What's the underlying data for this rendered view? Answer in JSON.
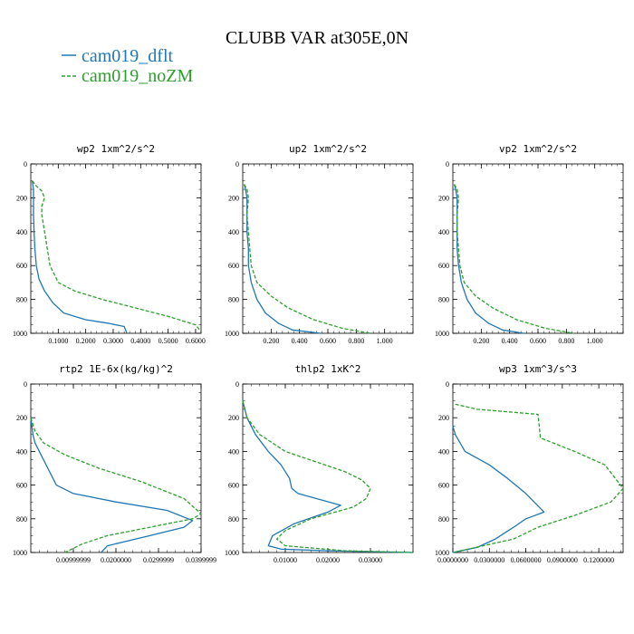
{
  "figure": {
    "title": "CLUBB VAR at305E,0N",
    "legend": [
      {
        "name": "cam019_dflt",
        "color": "#1f77b4",
        "dash": "none"
      },
      {
        "name": "cam019_noZM",
        "color": "#2ca02c",
        "dash": "4,2"
      }
    ]
  },
  "chart_data": [
    {
      "type": "line",
      "title": "wp2  1xm^2/s^2",
      "xlim": [
        0,
        0.62
      ],
      "ylim": [
        1000,
        0
      ],
      "yticks": [
        0,
        200,
        400,
        600,
        800,
        1000
      ],
      "xticks": [
        0.1,
        0.2,
        0.3,
        0.4,
        0.5,
        0.6
      ],
      "xtick_labels": [
        "0.1000",
        "0.2000",
        "0.3000",
        "0.4000",
        "0.5000",
        "0.6000"
      ],
      "series": [
        {
          "name": "cam019_dflt",
          "x": [
            0.005,
            0.01,
            0.01,
            0.01,
            0.012,
            0.015,
            0.02,
            0.03,
            0.05,
            0.08,
            0.12,
            0.2,
            0.28,
            0.34,
            0.35
          ],
          "y": [
            100,
            150,
            200,
            300,
            400,
            500,
            600,
            680,
            750,
            820,
            880,
            920,
            940,
            960,
            1000
          ]
        },
        {
          "name": "cam019_noZM",
          "x": [
            0.005,
            0.02,
            0.04,
            0.05,
            0.04,
            0.04,
            0.05,
            0.06,
            0.07,
            0.1,
            0.16,
            0.26,
            0.38,
            0.5,
            0.6,
            0.62
          ],
          "y": [
            100,
            130,
            160,
            200,
            250,
            300,
            400,
            500,
            600,
            700,
            750,
            800,
            850,
            900,
            950,
            990
          ]
        }
      ]
    },
    {
      "type": "line",
      "title": "up2  1xm^2/s^2",
      "xlim": [
        0,
        1.2
      ],
      "ylim": [
        1000,
        0
      ],
      "yticks": [
        0,
        200,
        400,
        600,
        800,
        1000
      ],
      "xticks": [
        0.2,
        0.4,
        0.6,
        0.8,
        1.0
      ],
      "xtick_labels": [
        "0.200",
        "0.400",
        "0.600",
        "0.800",
        "1.000"
      ],
      "series": [
        {
          "name": "cam019_dflt",
          "x": [
            0.01,
            0.02,
            0.03,
            0.03,
            0.03,
            0.04,
            0.04,
            0.06,
            0.1,
            0.16,
            0.25,
            0.35,
            0.55
          ],
          "y": [
            120,
            150,
            200,
            300,
            400,
            500,
            600,
            700,
            800,
            880,
            940,
            980,
            1000
          ]
        },
        {
          "name": "cam019_noZM",
          "x": [
            0.01,
            0.03,
            0.04,
            0.03,
            0.04,
            0.05,
            0.06,
            0.1,
            0.2,
            0.32,
            0.5,
            0.7,
            0.9
          ],
          "y": [
            120,
            150,
            200,
            300,
            400,
            500,
            600,
            700,
            780,
            850,
            920,
            970,
            1000
          ]
        }
      ]
    },
    {
      "type": "line",
      "title": "vp2  1xm^2/s^2",
      "xlim": [
        0,
        1.2
      ],
      "ylim": [
        1000,
        0
      ],
      "yticks": [
        0,
        200,
        400,
        600,
        800,
        1000
      ],
      "xticks": [
        0.2,
        0.4,
        0.6,
        0.8,
        1.0
      ],
      "xtick_labels": [
        "0.200",
        "0.400",
        "0.600",
        "0.800",
        "1.000"
      ],
      "series": [
        {
          "name": "cam019_dflt",
          "x": [
            0.01,
            0.02,
            0.03,
            0.03,
            0.03,
            0.03,
            0.04,
            0.06,
            0.1,
            0.16,
            0.25,
            0.35,
            0.5
          ],
          "y": [
            120,
            150,
            200,
            300,
            400,
            500,
            600,
            700,
            800,
            880,
            940,
            980,
            1000
          ]
        },
        {
          "name": "cam019_noZM",
          "x": [
            0.01,
            0.03,
            0.04,
            0.03,
            0.03,
            0.04,
            0.05,
            0.08,
            0.16,
            0.28,
            0.45,
            0.65,
            0.85
          ],
          "y": [
            120,
            150,
            200,
            300,
            400,
            500,
            600,
            700,
            780,
            850,
            920,
            970,
            1000
          ]
        }
      ]
    },
    {
      "type": "line",
      "title": "rtp2  1E-6x(kg/kg)^2",
      "xlim": [
        0,
        0.04
      ],
      "ylim": [
        1000,
        0
      ],
      "yticks": [
        0,
        200,
        400,
        600,
        800,
        1000
      ],
      "xticks": [
        0.01,
        0.02,
        0.03,
        0.04
      ],
      "xtick_labels": [
        "0.00999999",
        "0.0200000",
        "0.0299999",
        "0.0399999"
      ],
      "series": [
        {
          "name": "cam019_dflt",
          "x": [
            0.0,
            0.0005,
            0.001,
            0.002,
            0.004,
            0.006,
            0.01,
            0.02,
            0.032,
            0.038,
            0.036,
            0.028,
            0.018,
            0.0165
          ],
          "y": [
            200,
            300,
            350,
            400,
            500,
            600,
            650,
            700,
            750,
            810,
            850,
            900,
            960,
            1000
          ]
        },
        {
          "name": "cam019_noZM",
          "x": [
            0.0,
            0.001,
            0.003,
            0.008,
            0.016,
            0.026,
            0.036,
            0.04,
            0.038,
            0.028,
            0.018,
            0.012,
            0.008
          ],
          "y": [
            200,
            280,
            350,
            420,
            500,
            580,
            680,
            770,
            800,
            850,
            900,
            950,
            1000
          ]
        }
      ]
    },
    {
      "type": "line",
      "title": "thlp2  1xK^2",
      "xlim": [
        0,
        0.04
      ],
      "ylim": [
        1000,
        0
      ],
      "yticks": [
        0,
        200,
        400,
        600,
        800,
        1000
      ],
      "xticks": [
        0.01,
        0.02,
        0.03
      ],
      "xtick_labels": [
        "0.01000",
        "0.02000",
        "0.03000"
      ],
      "series": [
        {
          "name": "cam019_dflt",
          "x": [
            0.0,
            0.001,
            0.003,
            0.006,
            0.009,
            0.011,
            0.0115,
            0.013,
            0.023,
            0.02,
            0.012,
            0.007,
            0.006,
            0.009,
            0.02,
            0.04
          ],
          "y": [
            100,
            200,
            300,
            400,
            480,
            560,
            620,
            650,
            720,
            760,
            830,
            900,
            960,
            980,
            990,
            1000
          ]
        },
        {
          "name": "cam019_noZM",
          "x": [
            0.0,
            0.001,
            0.004,
            0.01,
            0.017,
            0.024,
            0.028,
            0.03,
            0.029,
            0.026,
            0.016,
            0.01,
            0.008,
            0.01,
            0.024,
            0.04
          ],
          "y": [
            100,
            200,
            300,
            400,
            460,
            520,
            570,
            620,
            680,
            730,
            800,
            870,
            920,
            960,
            990,
            1000
          ]
        }
      ]
    },
    {
      "type": "line",
      "title": "wp3  1xm^3/s^3",
      "xlim": [
        0,
        0.14
      ],
      "ylim": [
        1000,
        0
      ],
      "yticks": [
        0,
        200,
        400,
        600,
        800,
        1000
      ],
      "xticks": [
        0.0,
        0.03,
        0.06,
        0.09,
        0.12
      ],
      "xtick_labels": [
        "0.0000000",
        "0.0300000",
        "0.0600000",
        "0.0900000",
        "0.1200000"
      ],
      "series": [
        {
          "name": "cam019_dflt",
          "x": [
            0.0,
            0.002,
            0.01,
            0.03,
            0.045,
            0.06,
            0.075,
            0.06,
            0.05,
            0.035,
            0.02,
            0.0
          ],
          "y": [
            250,
            300,
            400,
            480,
            560,
            650,
            760,
            800,
            850,
            920,
            970,
            1000
          ]
        },
        {
          "name": "cam019_noZM",
          "x": [
            0.002,
            0.02,
            0.07,
            0.072,
            0.1,
            0.125,
            0.14,
            0.13,
            0.1,
            0.07,
            0.05,
            0.0
          ],
          "y": [
            120,
            150,
            180,
            320,
            400,
            480,
            620,
            700,
            780,
            850,
            920,
            1000
          ]
        }
      ]
    }
  ]
}
